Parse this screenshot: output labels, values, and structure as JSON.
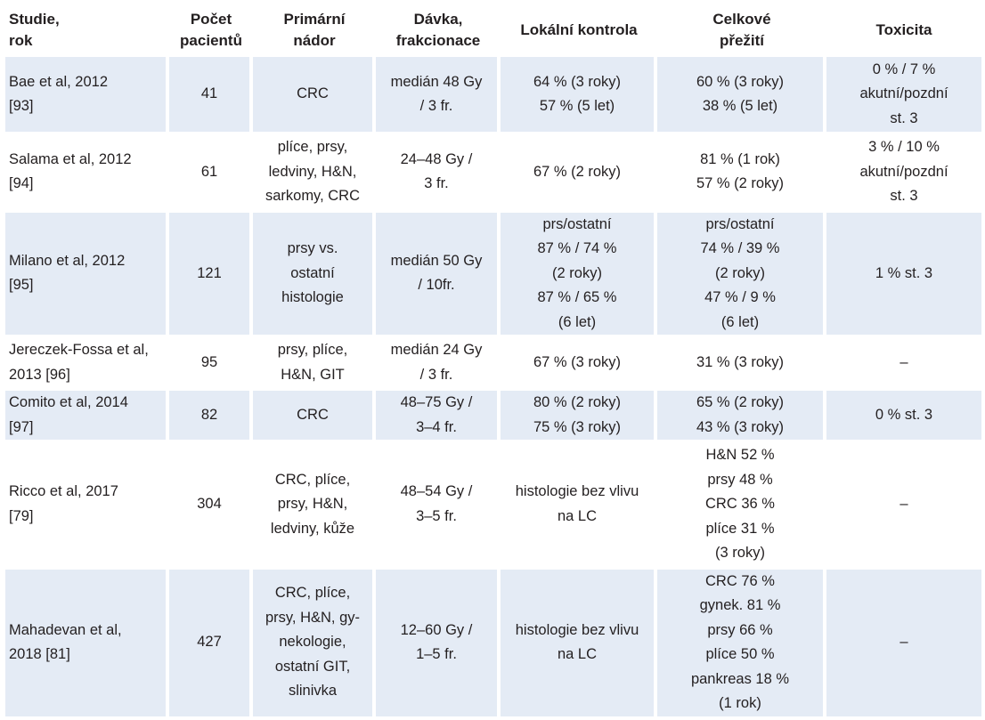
{
  "headers": [
    [
      "Studie,",
      "rok"
    ],
    [
      "Počet",
      "pacientů"
    ],
    [
      "Primární",
      "nádor"
    ],
    [
      "Dávka,",
      "frakcionace"
    ],
    [
      "Lokální kontrola"
    ],
    [
      "Celkové",
      "přežití"
    ],
    [
      "Toxicita"
    ]
  ],
  "rows": [
    {
      "study": [
        "Bae et al, 2012",
        "[93]"
      ],
      "patients": "41",
      "tumor": [
        "CRC"
      ],
      "dose": [
        "medián 48 Gy",
        "/ 3 fr."
      ],
      "local_control": [
        "64 % (3 roky)",
        "57 % (5 let)"
      ],
      "survival": [
        "60 % (3 roky)",
        "38 % (5 let)"
      ],
      "toxicity": [
        "0 % / 7 %",
        "akutní/pozdní",
        "st. 3"
      ]
    },
    {
      "study": [
        "Salama et al, 2012",
        "[94]"
      ],
      "patients": "61",
      "tumor": [
        "plíce, prsy,",
        "ledviny, H&N,",
        "sarkomy, CRC"
      ],
      "dose": [
        "24–48 Gy /",
        "3 fr."
      ],
      "local_control": [
        "67 % (2 roky)"
      ],
      "survival": [
        "81 % (1 rok)",
        "57 % (2 roky)"
      ],
      "toxicity": [
        "3 % / 10 %",
        "akutní/pozdní",
        "st. 3"
      ]
    },
    {
      "study": [
        "Milano et al, 2012",
        "[95]"
      ],
      "patients": "121",
      "tumor": [
        "prsy vs.",
        "ostatní",
        "histologie"
      ],
      "dose": [
        "medián 50 Gy",
        "/ 10fr."
      ],
      "local_control": [
        "prs/ostatní",
        "87 % / 74 %",
        "(2 roky)",
        "87 % / 65 %",
        "(6 let)"
      ],
      "survival": [
        "prs/ostatní",
        "74 % / 39 %",
        "(2 roky)",
        "47 % / 9 %",
        "(6 let)"
      ],
      "toxicity": [
        "1 % st. 3"
      ]
    },
    {
      "study": [
        "Jereczek-Fossa et al,",
        "2013 [96]"
      ],
      "patients": "95",
      "tumor": [
        "prsy, plíce,",
        "H&N, GIT"
      ],
      "dose": [
        "medián 24 Gy",
        "/ 3 fr."
      ],
      "local_control": [
        "67 % (3 roky)"
      ],
      "survival": [
        "31 % (3 roky)"
      ],
      "toxicity": [
        "–"
      ]
    },
    {
      "study": [
        "Comito et al, 2014",
        "[97]"
      ],
      "patients": "82",
      "tumor": [
        "CRC"
      ],
      "dose": [
        "48–75 Gy /",
        "3–4 fr."
      ],
      "local_control": [
        "80 % (2 roky)",
        "75 % (3 roky)"
      ],
      "survival": [
        "65 % (2 roky)",
        "43 % (3 roky)"
      ],
      "toxicity": [
        "0 % st. 3"
      ]
    },
    {
      "study": [
        "Ricco et al, 2017",
        "[79]"
      ],
      "patients": "304",
      "tumor": [
        "CRC, plíce,",
        "prsy, H&N,",
        "ledviny, kůže"
      ],
      "dose": [
        "48–54 Gy /",
        "3–5 fr."
      ],
      "local_control": [
        "histologie bez vlivu",
        "na LC"
      ],
      "survival": [
        "H&N 52 %",
        "prsy 48 %",
        "CRC 36 %",
        "plíce 31 %",
        "(3 roky)"
      ],
      "toxicity": [
        "–"
      ]
    },
    {
      "study": [
        "Mahadevan et al,",
        "2018 [81]"
      ],
      "patients": "427",
      "tumor": [
        "CRC, plíce,",
        "prsy, H&N, gy-",
        "nekologie,",
        "ostatní GIT,",
        "slinivka"
      ],
      "dose": [
        "12–60 Gy /",
        "1–5 fr."
      ],
      "local_control": [
        "histologie bez vlivu",
        "na LC"
      ],
      "survival": [
        "CRC 76 %",
        "gynek. 81 %",
        "prsy 66 %",
        "plíce 50 %",
        "pankreas 18 %",
        "(1 rok)"
      ],
      "toxicity": [
        "–"
      ]
    }
  ]
}
